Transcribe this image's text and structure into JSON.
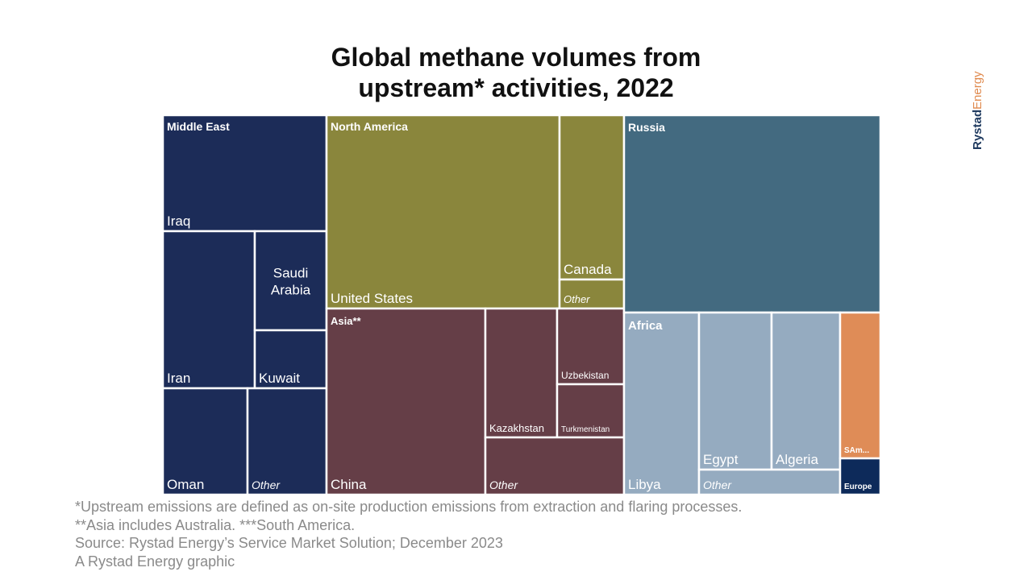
{
  "title_line1": "Global methane volumes from",
  "title_line2": "upstream* activities, 2022",
  "brand": {
    "part1": "Rystad",
    "part2": "Energy"
  },
  "footnotes": {
    "line1": "*Upstream emissions are defined as on-site production emissions from extraction and flaring processes.",
    "line2": "**Asia includes Australia. ***South America.",
    "source": "Source: Rystad Energy’s Service Market Solution; December 2023",
    "credit": "A Rystad Energy graphic"
  },
  "colors": {
    "middle_east": "#1c2c58",
    "north_america": "#8a863c",
    "russia": "#436a80",
    "asia": "#653e47",
    "africa": "#95abc0",
    "south_america": "#df8c57",
    "europe": "#0d2a5a"
  },
  "chart_data": {
    "type": "treemap",
    "title": "Global methane volumes from upstream* activities, 2022",
    "regions": [
      {
        "name": "Middle East",
        "color": "#1c2c58",
        "children": [
          {
            "name": "Iraq",
            "value": 5.9
          },
          {
            "name": "Iran",
            "value": 5.6
          },
          {
            "name": "Saudi Arabia",
            "value": 2.5
          },
          {
            "name": "Kuwait",
            "value": 1.8
          },
          {
            "name": "Oman",
            "value": 3.4
          },
          {
            "name": "Other",
            "value": 2.9
          }
        ]
      },
      {
        "name": "North America",
        "color": "#8a863c",
        "children": [
          {
            "name": "United States",
            "value": 17.6
          },
          {
            "name": "Canada",
            "value": 4.4
          },
          {
            "name": "Other",
            "value": 0.9
          }
        ]
      },
      {
        "name": "Asia**",
        "color": "#653e47",
        "children": [
          {
            "name": "China",
            "value": 11.6
          },
          {
            "name": "Kazakhstan",
            "value": 4.0
          },
          {
            "name": "Uzbekistan",
            "value": 2.0
          },
          {
            "name": "Turkmenistan",
            "value": 1.5
          },
          {
            "name": "Other",
            "value": 3.4
          }
        ]
      },
      {
        "name": "Russia",
        "value": 19.9,
        "color": "#436a80",
        "children": []
      },
      {
        "name": "Africa",
        "color": "#95abc0",
        "children": [
          {
            "name": "Libya",
            "value": 4.9
          },
          {
            "name": "Egypt",
            "value": 3.2
          },
          {
            "name": "Algeria",
            "value": 3.2
          },
          {
            "name": "Other",
            "value": 1.2
          }
        ]
      },
      {
        "name": "SAm...",
        "value": 1.9,
        "color": "#df8c57",
        "children": []
      },
      {
        "name": "Europe",
        "value": 0.5,
        "color": "#0d2a5a",
        "children": []
      }
    ]
  }
}
